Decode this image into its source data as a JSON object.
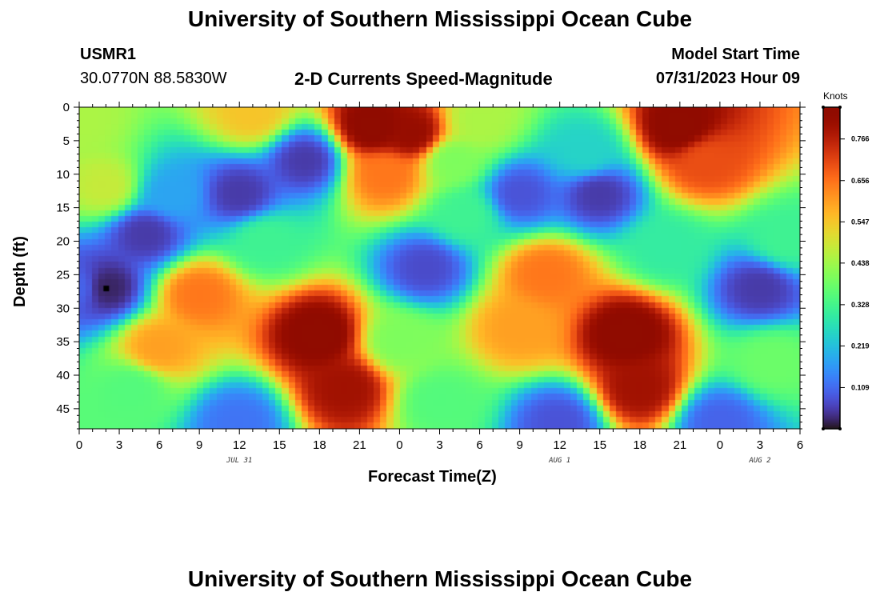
{
  "header": {
    "title": "University of Southern Mississippi Ocean Cube",
    "station": "USMR1",
    "coords": "30.0770N  88.5830W",
    "plot_title": "2-D Currents Speed-Magnitude",
    "model_start_label": "Model Start Time",
    "model_start_value": "07/31/2023 Hour 09"
  },
  "footer": {
    "title": "University of Southern Mississippi Ocean Cube"
  },
  "chart_data": {
    "type": "heatmap",
    "title": "2-D Currents Speed-Magnitude",
    "xlabel": "Forecast Time(Z)",
    "ylabel": "Depth (ft)",
    "x_ticks": [
      "0",
      "3",
      "6",
      "9",
      "12",
      "15",
      "18",
      "21",
      "0",
      "3",
      "6",
      "9",
      "12",
      "15",
      "18",
      "21",
      "0",
      "3",
      "6"
    ],
    "x_range_hours": [
      0,
      54
    ],
    "date_labels": [
      {
        "text": "JUL 31",
        "hour": 12
      },
      {
        "text": "AUG 1",
        "hour": 36
      },
      {
        "text": "AUG 2",
        "hour": 51
      }
    ],
    "y_ticks": [
      "0",
      "5",
      "10",
      "15",
      "20",
      "25",
      "30",
      "35",
      "40",
      "45"
    ],
    "y_range_ft": [
      0,
      48
    ],
    "y_inverted": true,
    "colorbar": {
      "label": "Knots",
      "range": [
        0,
        0.85
      ],
      "ticks": [
        "0.766",
        "0.656",
        "0.547",
        "0.438",
        "0.328",
        "0.219",
        "0.109"
      ],
      "tick_values": [
        0.766,
        0.656,
        0.547,
        0.438,
        0.328,
        0.219,
        0.109
      ],
      "colormap": "turbo"
    },
    "marker": {
      "hour": 2,
      "depth_ft": 27
    },
    "features": [
      {
        "hour": 0,
        "depth_ft": 2,
        "value": 0.45
      },
      {
        "hour": 2,
        "depth_ft": 12,
        "value": 0.48
      },
      {
        "hour": 13,
        "depth_ft": 1,
        "value": 0.55
      },
      {
        "hour": 17,
        "depth_ft": 8,
        "value": 0.05
      },
      {
        "hour": 22,
        "depth_ft": 3,
        "value": 0.85
      },
      {
        "hour": 25,
        "depth_ft": 4,
        "value": 0.82
      },
      {
        "hour": 23,
        "depth_ft": 10,
        "value": 0.65
      },
      {
        "hour": 12,
        "depth_ft": 13,
        "value": 0.05
      },
      {
        "hour": 7,
        "depth_ft": 13,
        "value": 0.18
      },
      {
        "hour": 5,
        "depth_ft": 19,
        "value": 0.05
      },
      {
        "hour": 0,
        "depth_ft": 27,
        "value": 0.1
      },
      {
        "hour": 2,
        "depth_ft": 27,
        "value": 0.02
      },
      {
        "hour": 9,
        "depth_ft": 28,
        "value": 0.65
      },
      {
        "hour": 6,
        "depth_ft": 36,
        "value": 0.6
      },
      {
        "hour": 18,
        "depth_ft": 34,
        "value": 0.85
      },
      {
        "hour": 20,
        "depth_ft": 42,
        "value": 0.8
      },
      {
        "hour": 12,
        "depth_ft": 47,
        "value": 0.12
      },
      {
        "hour": 26,
        "depth_ft": 24,
        "value": 0.07
      },
      {
        "hour": 29,
        "depth_ft": 16,
        "value": 0.32
      },
      {
        "hour": 33,
        "depth_ft": 13,
        "value": 0.08
      },
      {
        "hour": 30,
        "depth_ft": 2,
        "value": 0.45
      },
      {
        "hour": 39,
        "depth_ft": 13,
        "value": 0.05
      },
      {
        "hour": 38,
        "depth_ft": 7,
        "value": 0.25
      },
      {
        "hour": 35,
        "depth_ft": 25,
        "value": 0.65
      },
      {
        "hour": 33,
        "depth_ft": 33,
        "value": 0.6
      },
      {
        "hour": 41,
        "depth_ft": 34,
        "value": 0.85
      },
      {
        "hour": 42,
        "depth_ft": 42,
        "value": 0.8
      },
      {
        "hour": 36,
        "depth_ft": 47,
        "value": 0.08
      },
      {
        "hour": 45,
        "depth_ft": 3,
        "value": 0.85
      },
      {
        "hour": 47,
        "depth_ft": 8,
        "value": 0.7
      },
      {
        "hour": 51,
        "depth_ft": 27,
        "value": 0.05
      },
      {
        "hour": 53,
        "depth_ft": 20,
        "value": 0.32
      },
      {
        "hour": 48,
        "depth_ft": 47,
        "value": 0.1
      },
      {
        "hour": 27,
        "depth_ft": 44,
        "value": 0.35
      },
      {
        "hour": 14,
        "depth_ft": 20,
        "value": 0.32
      },
      {
        "hour": 24,
        "depth_ft": 35,
        "value": 0.4
      },
      {
        "hour": 52,
        "depth_ft": 38,
        "value": 0.38
      },
      {
        "hour": 44,
        "depth_ft": 21,
        "value": 0.3
      },
      {
        "hour": 4,
        "depth_ft": 42,
        "value": 0.35
      },
      {
        "hour": 28,
        "depth_ft": 8,
        "value": 0.4
      }
    ]
  }
}
